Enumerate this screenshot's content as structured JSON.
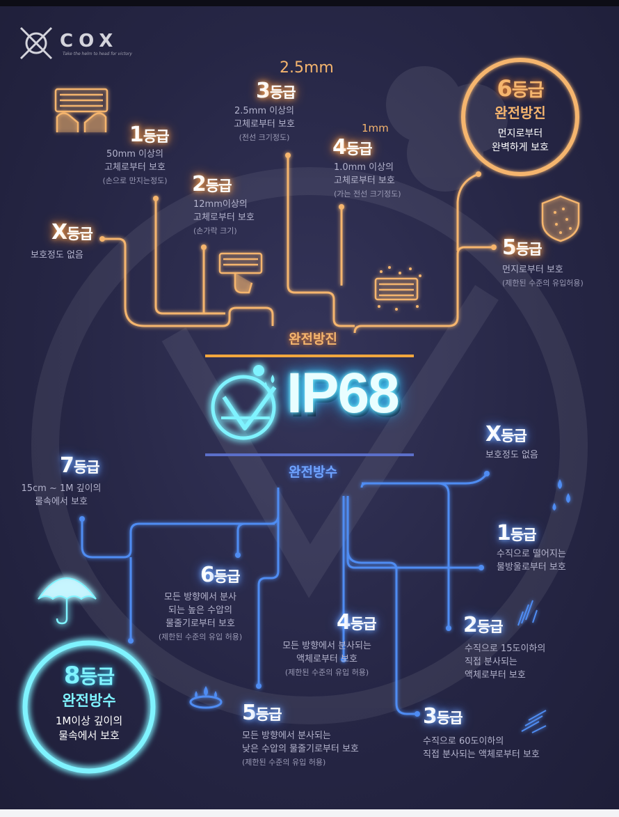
{
  "brand": {
    "logo_text": "COX",
    "tagline": "Take the helm to head for victory"
  },
  "center": {
    "title": "IP68",
    "dust_label": "완전방진",
    "water_label": "완전방수"
  },
  "dust": {
    "levels": [
      {
        "id": "x",
        "grade": "X",
        "unit": "등급",
        "lines": [
          "보호정도 없음"
        ]
      },
      {
        "id": "1",
        "grade": "1",
        "unit": "등급",
        "lines": [
          "50mm 이상의",
          "고체로부터 보호"
        ],
        "note": "(손으로 만지는정도)"
      },
      {
        "id": "2",
        "grade": "2",
        "unit": "등급",
        "lines": [
          "12mm이상의",
          "고체로부터 보호"
        ],
        "note": "(손가락 크기)"
      },
      {
        "id": "3",
        "grade": "3",
        "unit": "등급",
        "lines": [
          "2.5mm 이상의",
          "고체로부터 보호"
        ],
        "note": "(전선 크기정도)",
        "size": "2.5mm"
      },
      {
        "id": "4",
        "grade": "4",
        "unit": "등급",
        "lines": [
          "1.0mm 이상의",
          "고체로부터 보호"
        ],
        "note": "(가는 전선 크기정도)",
        "size": "1mm"
      },
      {
        "id": "5",
        "grade": "5",
        "unit": "등급",
        "lines": [
          "먼지로부터 보호"
        ],
        "note": "(제한된 수준의 유입허용)"
      }
    ],
    "top": {
      "grade": "6",
      "unit": "등급",
      "title": "완전방진",
      "lines": [
        "먼지로부터",
        "완벽하게 보호"
      ]
    }
  },
  "water": {
    "levels": [
      {
        "id": "x",
        "grade": "X",
        "unit": "등급",
        "lines": [
          "보호정도 없음"
        ]
      },
      {
        "id": "1",
        "grade": "1",
        "unit": "등급",
        "lines": [
          "수직으로 떨어지는",
          "물방울로부터 보호"
        ]
      },
      {
        "id": "2",
        "grade": "2",
        "unit": "등급",
        "lines": [
          "수직으로 15도이하의",
          "직접 분사되는",
          "액체로부터 보호"
        ]
      },
      {
        "id": "3",
        "grade": "3",
        "unit": "등급",
        "lines": [
          "수직으로 60도이하의",
          "직접 분사되는 액체로부터 보호"
        ]
      },
      {
        "id": "4",
        "grade": "4",
        "unit": "등급",
        "lines": [
          "모든 방향에서 분사되는",
          "액체로부터 보호"
        ],
        "note": "(제한된 수준의 유입 허용)"
      },
      {
        "id": "5",
        "grade": "5",
        "unit": "등급",
        "lines": [
          "모든 방향에서 분사되는",
          "낮은 수압의 물줄기로부터 보호"
        ],
        "note": "(제한된 수준의 유입 허용)"
      },
      {
        "id": "6",
        "grade": "6",
        "unit": "등급",
        "lines": [
          "모든 방향에서 분사",
          "되는 높은 수압의",
          "물줄기로부터 보호"
        ],
        "note": "(제한된 수준의 유입 허용)"
      },
      {
        "id": "7",
        "grade": "7",
        "unit": "등급",
        "lines": [
          "15cm ~ 1M 깊이의",
          "물속에서 보호"
        ]
      }
    ],
    "top": {
      "grade": "8",
      "unit": "등급",
      "title": "완전방수",
      "lines": [
        "1M이상 깊이의",
        "물속에서 보호"
      ]
    }
  },
  "colors": {
    "dust": "#f5b56e",
    "water": "#4f8cf2",
    "glow_cyan": "#7ff3ff",
    "bg": "#262645"
  }
}
